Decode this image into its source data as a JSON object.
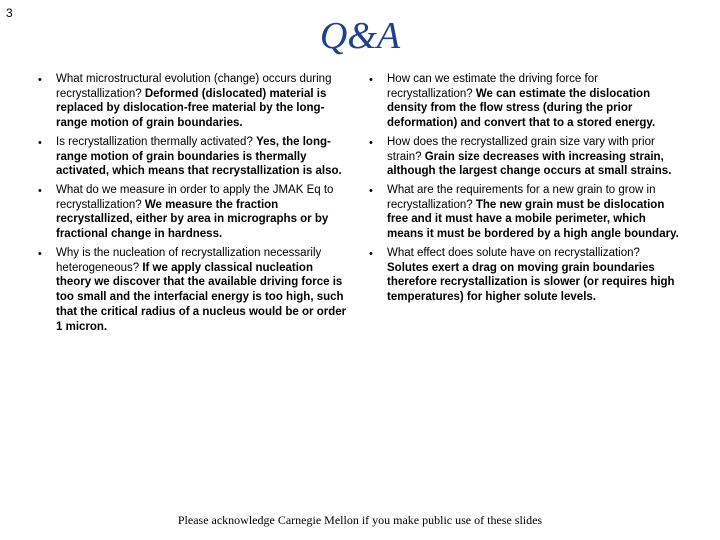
{
  "page_number": "3",
  "title": "Q&A",
  "title_color": "#1f3f8f",
  "title_fontsize": 38,
  "body_fontsize": 11.5,
  "background_color": "#ffffff",
  "left_items": [
    {
      "q": "What microstructural evolution (change) occurs during recrystallization? ",
      "a": "Deformed (dislocated) material is replaced by dislocation-free material by the long-range motion of grain boundaries."
    },
    {
      "q": "Is recrystallization thermally activated? ",
      "a": "Yes, the long-range motion of grain boundaries is thermally activated, which means that recrystallization is also."
    },
    {
      "q": "What do we measure in order to apply the JMAK Eq to recrystallization? ",
      "a": "We measure the fraction recrystallized, either by area in micrographs or by fractional change in hardness."
    },
    {
      "q": "Why is the nucleation of recrystallization necessarily heterogeneous? ",
      "a": "If we apply classical nucleation theory we discover that the available driving force is too small and the interfacial energy is too high, such that the critical radius of a nucleus would be or order 1 micron."
    }
  ],
  "right_items": [
    {
      "q": "How can we estimate the driving force for recrystallization? ",
      "a": "We can estimate the dislocation density from the flow stress (during the prior deformation) and convert that to a stored energy."
    },
    {
      "q": "How does the recrystallized grain size vary with prior strain? ",
      "a": "Grain size decreases with increasing strain, although the largest change occurs at small strains."
    },
    {
      "q": "What are the requirements for a new grain to grow in recrystallization? ",
      "a": "The new grain must be dislocation free and it must have a mobile perimeter, which means it must be bordered by a high angle boundary."
    },
    {
      "q": "What effect does solute have on recrystallization? ",
      "a": "Solutes exert a drag on moving grain boundaries therefore recrystallization is slower (or requires high temperatures) for higher solute levels."
    }
  ],
  "footer": "Please acknowledge Carnegie Mellon if you make public use of these slides"
}
